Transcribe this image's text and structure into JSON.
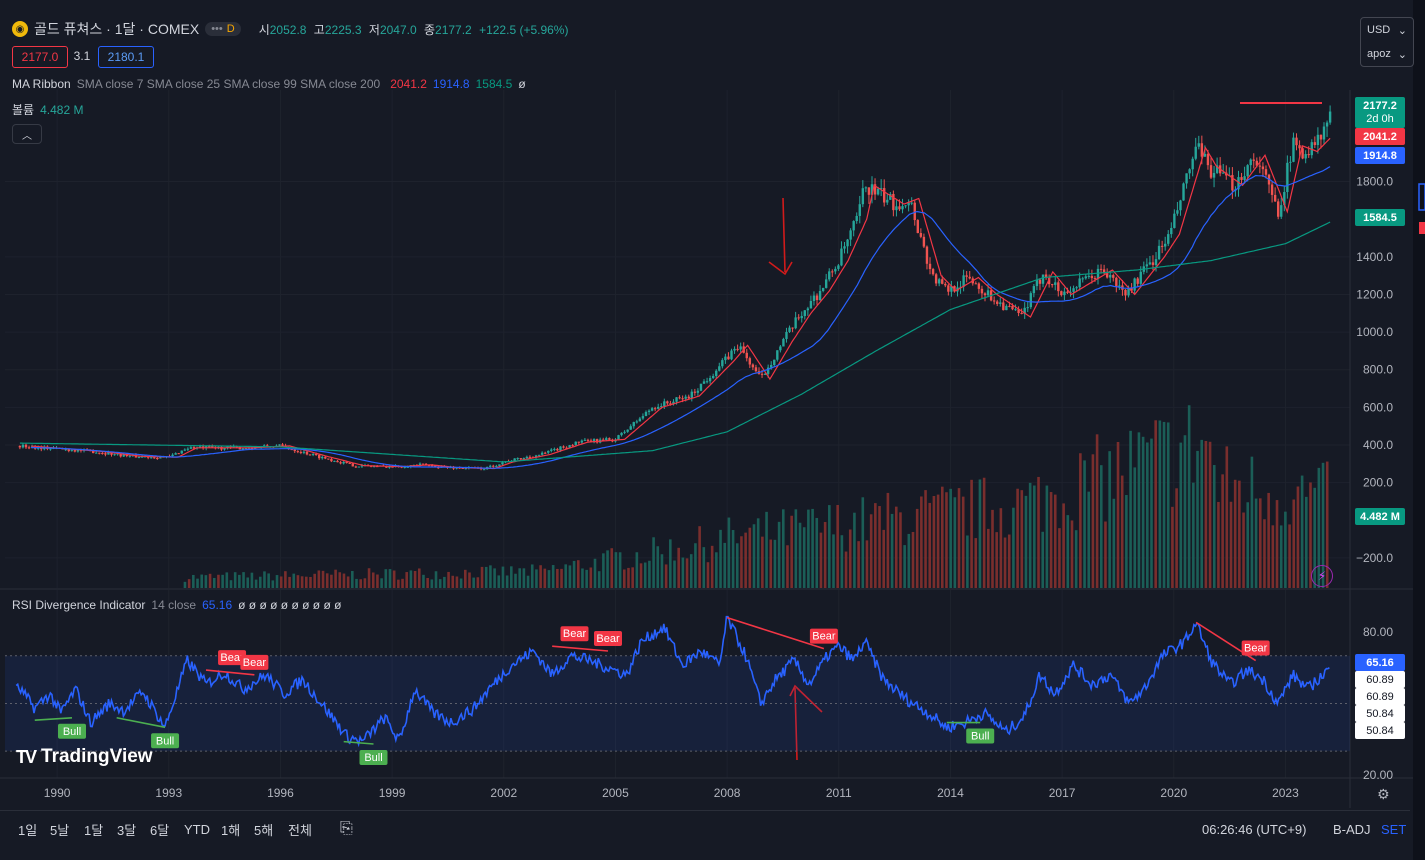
{
  "header": {
    "symbol_icon": "gold-coin-icon",
    "title": "골드 퓨쳐스 · 1달 · COMEX",
    "d_badge": "D",
    "ohlc": [
      {
        "label": "시",
        "value": "2052.8"
      },
      {
        "label": "고",
        "value": "2225.3"
      },
      {
        "label": "저",
        "value": "2047.0"
      },
      {
        "label": "종",
        "value": "2177.2"
      }
    ],
    "change": "+122.5 (+5.96%)",
    "sell_price": "2177.0",
    "spread": "3.1",
    "buy_price": "2180.1"
  },
  "currency_menu": {
    "currency": "USD",
    "scale": "apoz"
  },
  "indicators": {
    "ma_ribbon": {
      "name": "MA Ribbon",
      "params": "SMA close 7 SMA close 25 SMA close 99 SMA close 200",
      "v1": "2041.2",
      "v2": "1914.8",
      "v3": "1584.5",
      "v4": "ø"
    },
    "volume": {
      "name": "볼륨",
      "value": "4.482 M"
    },
    "rsi": {
      "name": "RSI Divergence Indicator",
      "params": "14 close",
      "value": "65.16",
      "empties": "ø ø ø ø ø ø ø ø ø ø"
    }
  },
  "price_labels": {
    "last": "2177.2",
    "countdown": "2d 0h",
    "ma7": "2041.2",
    "ma25": "1914.8",
    "ma99": "1584.5",
    "vol": "4.482 M"
  },
  "rsi_labels": {
    "rsi": "65.16",
    "a": "60.89",
    "b": "60.89",
    "c": "50.84",
    "d": "50.84"
  },
  "toolbar": {
    "ranges": [
      "1일",
      "5날",
      "1달",
      "3달",
      "6달",
      "YTD",
      "1해",
      "5해",
      "전체"
    ],
    "time": "06:26:46 (UTC+9)",
    "adj": "B-ADJ",
    "set": "SET"
  },
  "branding": {
    "logo_text": "TradingView"
  },
  "colors": {
    "up": "#26a69a",
    "down": "#ef5350",
    "ma7": "#f23645",
    "ma25": "#2962ff",
    "ma99": "#089981",
    "rsi": "#2962ff",
    "bull": "#4caf50",
    "bear": "#f23645",
    "bg": "#161a25"
  },
  "chart_data": [
    {
      "type": "candlestick",
      "title": "골드 퓨쳐스 · 1달 · COMEX",
      "x_ticks": [
        "1990",
        "1993",
        "1996",
        "1999",
        "2002",
        "2005",
        "2008",
        "2011",
        "2014",
        "2017",
        "2020",
        "2023"
      ],
      "y_ticks": [
        1800,
        1400,
        1200,
        1000,
        800,
        600,
        400,
        200,
        -200
      ],
      "y_ticks_top": [
        "1800.0",
        "1400.0",
        "1200.0",
        "1000.0",
        "800.0",
        "600.0",
        "400.0",
        "200.0",
        "−200.0"
      ],
      "ylim": [
        -360,
        2260
      ],
      "xlim": [
        1988.6,
        2024.6
      ],
      "close_anchors": [
        [
          1989.0,
          395
        ],
        [
          1990.0,
          380
        ],
        [
          1991.0,
          365
        ],
        [
          1992.0,
          340
        ],
        [
          1993.0,
          335
        ],
        [
          1993.5,
          385
        ],
        [
          1994.0,
          385
        ],
        [
          1995.0,
          385
        ],
        [
          1996.0,
          395
        ],
        [
          1997.0,
          340
        ],
        [
          1998.0,
          290
        ],
        [
          1999.0,
          285
        ],
        [
          1999.8,
          295
        ],
        [
          2000.5,
          280
        ],
        [
          2001.5,
          275
        ],
        [
          2002.0,
          310
        ],
        [
          2003.0,
          350
        ],
        [
          2004.0,
          415
        ],
        [
          2005.0,
          430
        ],
        [
          2006.0,
          600
        ],
        [
          2007.0,
          660
        ],
        [
          2007.9,
          840
        ],
        [
          2008.3,
          930
        ],
        [
          2008.9,
          750
        ],
        [
          2009.5,
          950
        ],
        [
          2010.0,
          1100
        ],
        [
          2010.5,
          1220
        ],
        [
          2011.0,
          1380
        ],
        [
          2011.5,
          1600
        ],
        [
          2011.7,
          1780
        ],
        [
          2012.5,
          1680
        ],
        [
          2012.9,
          1710
        ],
        [
          2013.5,
          1300
        ],
        [
          2013.9,
          1220
        ],
        [
          2014.5,
          1290
        ],
        [
          2015.0,
          1200
        ],
        [
          2015.9,
          1080
        ],
        [
          2016.5,
          1320
        ],
        [
          2017.0,
          1200
        ],
        [
          2017.5,
          1260
        ],
        [
          2018.1,
          1330
        ],
        [
          2018.7,
          1200
        ],
        [
          2019.5,
          1400
        ],
        [
          2019.9,
          1520
        ],
        [
          2020.6,
          1980
        ],
        [
          2020.9,
          1880
        ],
        [
          2021.6,
          1780
        ],
        [
          2022.2,
          1940
        ],
        [
          2022.8,
          1640
        ],
        [
          2023.2,
          1990
        ],
        [
          2023.6,
          1960
        ],
        [
          2024.0,
          2040
        ],
        [
          2024.2,
          2177
        ]
      ],
      "ma_series": [
        {
          "name": "SMA close 7",
          "value": 2041.2
        },
        {
          "name": "SMA close 25",
          "value": 1914.8
        },
        {
          "name": "SMA close 99",
          "value": 1584.5
        }
      ],
      "ma99_anchors": [
        [
          1989.0,
          410
        ],
        [
          1996.0,
          390
        ],
        [
          2002.0,
          310
        ],
        [
          2006.0,
          370
        ],
        [
          2008.0,
          470
        ],
        [
          2010.0,
          670
        ],
        [
          2012.0,
          900
        ],
        [
          2014.0,
          1120
        ],
        [
          2016.5,
          1290
        ],
        [
          2019.0,
          1330
        ],
        [
          2021.0,
          1380
        ],
        [
          2023.0,
          1470
        ],
        [
          2024.2,
          1584.5
        ]
      ],
      "volume_last": "4.482 M"
    },
    {
      "type": "line",
      "title": "RSI Divergence Indicator 14 close",
      "y_ticks": [
        "80.00",
        "20.00"
      ],
      "ylim": [
        20,
        85
      ],
      "band": [
        30,
        70
      ],
      "last": 65.16,
      "rsi_anchors": [
        [
          1989.0,
          56
        ],
        [
          1989.4,
          48
        ],
        [
          1989.8,
          54
        ],
        [
          1990.1,
          46
        ],
        [
          1990.5,
          56
        ],
        [
          1990.9,
          42
        ],
        [
          1991.4,
          50
        ],
        [
          1991.8,
          47
        ],
        [
          1992.3,
          55
        ],
        [
          1992.9,
          40
        ],
        [
          1993.5,
          68
        ],
        [
          1994.0,
          58
        ],
        [
          1994.5,
          63
        ],
        [
          1995.0,
          56
        ],
        [
          1995.6,
          62
        ],
        [
          1996.1,
          54
        ],
        [
          1996.6,
          60
        ],
        [
          1997.2,
          48
        ],
        [
          1997.8,
          36
        ],
        [
          1998.2,
          34
        ],
        [
          1998.8,
          44
        ],
        [
          1999.2,
          34
        ],
        [
          1999.6,
          56
        ],
        [
          2000.1,
          46
        ],
        [
          2000.6,
          42
        ],
        [
          2001.2,
          48
        ],
        [
          2001.6,
          56
        ],
        [
          2002.2,
          66
        ],
        [
          2002.8,
          72
        ],
        [
          2003.3,
          62
        ],
        [
          2003.8,
          70
        ],
        [
          2004.3,
          68
        ],
        [
          2004.8,
          65
        ],
        [
          2005.3,
          62
        ],
        [
          2005.7,
          76
        ],
        [
          2006.3,
          82
        ],
        [
          2006.8,
          66
        ],
        [
          2007.3,
          72
        ],
        [
          2007.8,
          66
        ],
        [
          2008.0,
          86
        ],
        [
          2008.5,
          70
        ],
        [
          2008.9,
          50
        ],
        [
          2009.3,
          60
        ],
        [
          2009.8,
          68
        ],
        [
          2010.2,
          58
        ],
        [
          2010.7,
          70
        ],
        [
          2011.0,
          74
        ],
        [
          2011.4,
          68
        ],
        [
          2011.7,
          76
        ],
        [
          2012.2,
          60
        ],
        [
          2012.8,
          52
        ],
        [
          2013.4,
          46
        ],
        [
          2013.9,
          40
        ],
        [
          2014.4,
          42
        ],
        [
          2014.9,
          46
        ],
        [
          2015.5,
          38
        ],
        [
          2016.0,
          45
        ],
        [
          2016.4,
          62
        ],
        [
          2016.8,
          54
        ],
        [
          2017.3,
          66
        ],
        [
          2017.8,
          58
        ],
        [
          2018.3,
          62
        ],
        [
          2018.8,
          50
        ],
        [
          2019.2,
          56
        ],
        [
          2019.7,
          70
        ],
        [
          2020.3,
          76
        ],
        [
          2020.6,
          84
        ],
        [
          2021.0,
          68
        ],
        [
          2021.5,
          58
        ],
        [
          2022.0,
          64
        ],
        [
          2022.4,
          60
        ],
        [
          2022.8,
          50
        ],
        [
          2023.2,
          62
        ],
        [
          2023.6,
          56
        ],
        [
          2024.0,
          62
        ],
        [
          2024.2,
          65.16
        ]
      ],
      "signals": [
        {
          "label": "Bull",
          "x": 1990.4,
          "value": 44
        },
        {
          "label": "Bull",
          "x": 1992.9,
          "value": 40
        },
        {
          "label": "Bear",
          "x": 1994.7,
          "value": 64
        },
        {
          "label": "Bear",
          "x": 1995.3,
          "value": 62
        },
        {
          "label": "Bull",
          "x": 1998.5,
          "value": 33
        },
        {
          "label": "Bear",
          "x": 2003.9,
          "value": 74
        },
        {
          "label": "Bear",
          "x": 2004.8,
          "value": 72
        },
        {
          "label": "Bear",
          "x": 2010.6,
          "value": 73
        },
        {
          "label": "Bull",
          "x": 2014.8,
          "value": 42
        },
        {
          "label": "Bear",
          "x": 2022.2,
          "value": 68
        }
      ]
    }
  ]
}
